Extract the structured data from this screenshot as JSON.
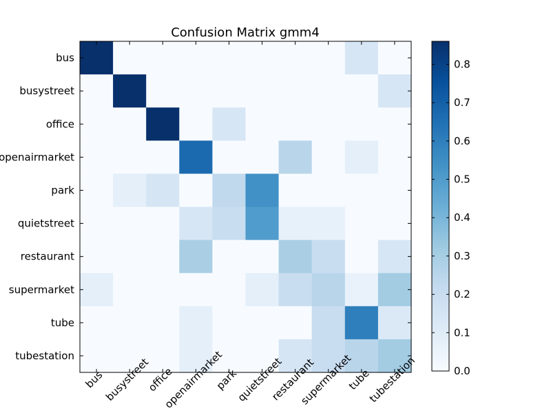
{
  "chart_data": {
    "type": "heatmap",
    "title": "Confusion Matrix gmm4",
    "xlabel": "",
    "ylabel": "",
    "rows": [
      "bus",
      "busystreet",
      "office",
      "openairmarket",
      "park",
      "quietstreet",
      "restaurant",
      "supermarket",
      "tube",
      "tubestation"
    ],
    "columns": [
      "bus",
      "busystreet",
      "office",
      "openairmarket",
      "park",
      "quietstreet",
      "restaurant",
      "supermarket",
      "tube",
      "tubestation"
    ],
    "values": [
      [
        0.86,
        0.0,
        0.0,
        0.0,
        0.0,
        0.0,
        0.0,
        0.0,
        0.14,
        0.0
      ],
      [
        0.0,
        0.86,
        0.0,
        0.0,
        0.0,
        0.0,
        0.0,
        0.0,
        0.0,
        0.14
      ],
      [
        0.0,
        0.0,
        0.86,
        0.0,
        0.14,
        0.0,
        0.0,
        0.0,
        0.0,
        0.0
      ],
      [
        0.0,
        0.0,
        0.0,
        0.67,
        0.0,
        0.0,
        0.25,
        0.0,
        0.08,
        0.0
      ],
      [
        0.0,
        0.08,
        0.15,
        0.0,
        0.23,
        0.54,
        0.0,
        0.0,
        0.0,
        0.0
      ],
      [
        0.0,
        0.0,
        0.0,
        0.14,
        0.2,
        0.5,
        0.07,
        0.07,
        0.0,
        0.0
      ],
      [
        0.0,
        0.0,
        0.0,
        0.29,
        0.0,
        0.0,
        0.29,
        0.2,
        0.0,
        0.14
      ],
      [
        0.08,
        0.0,
        0.0,
        0.0,
        0.0,
        0.08,
        0.2,
        0.25,
        0.06,
        0.31
      ],
      [
        0.0,
        0.0,
        0.0,
        0.08,
        0.0,
        0.0,
        0.0,
        0.2,
        0.6,
        0.12
      ],
      [
        0.0,
        0.0,
        0.0,
        0.08,
        0.0,
        0.0,
        0.15,
        0.2,
        0.25,
        0.31
      ]
    ],
    "colorbar": {
      "min": 0.0,
      "max": 0.86,
      "ticks": [
        0.0,
        0.1,
        0.2,
        0.3,
        0.4,
        0.5,
        0.6,
        0.7,
        0.8
      ],
      "tick_labels": [
        "0.0",
        "0.1",
        "0.2",
        "0.3",
        "0.4",
        "0.5",
        "0.6",
        "0.7",
        "0.8"
      ],
      "colormap": "Blues",
      "colors": [
        "#f7fbff",
        "#deebf7",
        "#c6dbef",
        "#9ecae1",
        "#6baed6",
        "#4292c6",
        "#2171b5",
        "#08519c",
        "#08306b"
      ]
    },
    "x_tick_rotation_deg": 45
  }
}
